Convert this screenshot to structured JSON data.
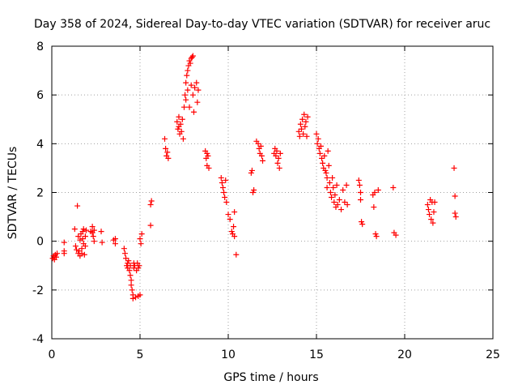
{
  "chart_data": {
    "type": "scatter",
    "title": "Day 358 of 2024, Sidereal Day-to-day VTEC variation (SDTVAR) for receiver aruc",
    "xlabel": "GPS time / hours",
    "ylabel": "SDTVAR / TECUs",
    "xlim": [
      0,
      25
    ],
    "ylim": [
      -4,
      8
    ],
    "xticks": [
      "0",
      "5",
      "10",
      "15",
      "20",
      "25"
    ],
    "yticks": [
      "-4",
      "-2",
      "0",
      "2",
      "4",
      "6",
      "8"
    ],
    "grid": true,
    "marker": "plus",
    "color": "#ff0000",
    "series": [
      {
        "name": "SDTVAR",
        "points": [
          [
            0.05,
            -0.7
          ],
          [
            0.1,
            -0.6
          ],
          [
            0.15,
            -0.75
          ],
          [
            0.2,
            -0.55
          ],
          [
            0.25,
            -0.65
          ],
          [
            0.3,
            -0.5
          ],
          [
            0.7,
            -0.05
          ],
          [
            0.7,
            -0.4
          ],
          [
            0.7,
            -0.5
          ],
          [
            1.3,
            0.5
          ],
          [
            1.35,
            -0.2
          ],
          [
            1.4,
            -0.35
          ],
          [
            1.45,
            1.45
          ],
          [
            1.5,
            -0.5
          ],
          [
            1.5,
            0.2
          ],
          [
            1.55,
            -0.4
          ],
          [
            1.6,
            -0.6
          ],
          [
            1.6,
            0.05
          ],
          [
            1.65,
            0.3
          ],
          [
            1.7,
            -0.3
          ],
          [
            1.7,
            -0.5
          ],
          [
            1.75,
            0.4
          ],
          [
            1.75,
            0.1
          ],
          [
            1.8,
            -0.1
          ],
          [
            1.8,
            0.5
          ],
          [
            1.85,
            -0.55
          ],
          [
            1.9,
            -0.2
          ],
          [
            1.9,
            0.2
          ],
          [
            1.95,
            0.45
          ],
          [
            2.2,
            0.4
          ],
          [
            2.3,
            0.6
          ],
          [
            2.3,
            0.35
          ],
          [
            2.35,
            0.2
          ],
          [
            2.4,
            0.0
          ],
          [
            2.4,
            0.45
          ],
          [
            2.8,
            0.4
          ],
          [
            2.85,
            -0.05
          ],
          [
            3.5,
            0.05
          ],
          [
            3.6,
            0.1
          ],
          [
            3.6,
            -0.1
          ],
          [
            4.1,
            -0.3
          ],
          [
            4.15,
            -0.5
          ],
          [
            4.2,
            -0.7
          ],
          [
            4.25,
            -1.0
          ],
          [
            4.3,
            -1.1
          ],
          [
            4.3,
            -0.9
          ],
          [
            4.35,
            -0.8
          ],
          [
            4.4,
            -1.2
          ],
          [
            4.45,
            -1.4
          ],
          [
            4.45,
            -1.0
          ],
          [
            4.5,
            -1.6
          ],
          [
            4.5,
            -1.8
          ],
          [
            4.55,
            -2.0
          ],
          [
            4.6,
            -2.2
          ],
          [
            4.6,
            -2.35
          ],
          [
            4.65,
            -1.1
          ],
          [
            4.65,
            -0.9
          ],
          [
            4.7,
            -1.0
          ],
          [
            4.75,
            -2.3
          ],
          [
            4.8,
            -1.2
          ],
          [
            4.85,
            -0.9
          ],
          [
            4.9,
            -1.1
          ],
          [
            4.9,
            -2.25
          ],
          [
            4.95,
            -1.0
          ],
          [
            5.0,
            -2.2
          ],
          [
            5.0,
            0.1
          ],
          [
            5.05,
            -0.1
          ],
          [
            5.1,
            0.3
          ],
          [
            5.6,
            1.5
          ],
          [
            5.65,
            1.65
          ],
          [
            5.6,
            0.65
          ],
          [
            6.4,
            4.2
          ],
          [
            6.45,
            3.8
          ],
          [
            6.5,
            3.5
          ],
          [
            6.55,
            3.65
          ],
          [
            6.6,
            3.4
          ],
          [
            7.1,
            4.9
          ],
          [
            7.15,
            4.6
          ],
          [
            7.2,
            4.7
          ],
          [
            7.2,
            5.1
          ],
          [
            7.25,
            4.4
          ],
          [
            7.3,
            4.8
          ],
          [
            7.35,
            4.5
          ],
          [
            7.4,
            5.0
          ],
          [
            7.45,
            4.2
          ],
          [
            7.5,
            5.5
          ],
          [
            7.55,
            6.0
          ],
          [
            7.6,
            6.5
          ],
          [
            7.6,
            5.8
          ],
          [
            7.65,
            6.8
          ],
          [
            7.7,
            7.0
          ],
          [
            7.7,
            6.2
          ],
          [
            7.75,
            7.2
          ],
          [
            7.8,
            7.4
          ],
          [
            7.8,
            5.5
          ],
          [
            7.85,
            7.3
          ],
          [
            7.9,
            7.5
          ],
          [
            7.9,
            6.4
          ],
          [
            7.95,
            7.55
          ],
          [
            8.0,
            7.6
          ],
          [
            8.0,
            6.0
          ],
          [
            8.05,
            5.3
          ],
          [
            8.1,
            6.3
          ],
          [
            8.2,
            6.5
          ],
          [
            8.25,
            5.7
          ],
          [
            8.3,
            6.2
          ],
          [
            8.7,
            3.7
          ],
          [
            8.75,
            3.4
          ],
          [
            8.8,
            3.1
          ],
          [
            8.8,
            3.6
          ],
          [
            8.85,
            3.5
          ],
          [
            8.9,
            3.0
          ],
          [
            9.6,
            2.6
          ],
          [
            9.65,
            2.4
          ],
          [
            9.7,
            2.2
          ],
          [
            9.75,
            2.0
          ],
          [
            9.8,
            1.8
          ],
          [
            9.85,
            2.5
          ],
          [
            9.9,
            1.6
          ],
          [
            10.0,
            1.1
          ],
          [
            10.1,
            0.9
          ],
          [
            10.2,
            0.4
          ],
          [
            10.25,
            0.3
          ],
          [
            10.3,
            0.6
          ],
          [
            10.35,
            0.2
          ],
          [
            10.35,
            1.2
          ],
          [
            10.45,
            -0.55
          ],
          [
            11.3,
            2.8
          ],
          [
            11.35,
            2.9
          ],
          [
            11.4,
            2.0
          ],
          [
            11.45,
            2.1
          ],
          [
            11.6,
            4.1
          ],
          [
            11.7,
            4.0
          ],
          [
            11.75,
            3.8
          ],
          [
            11.8,
            3.6
          ],
          [
            11.85,
            3.9
          ],
          [
            11.9,
            3.5
          ],
          [
            11.95,
            3.3
          ],
          [
            12.6,
            3.6
          ],
          [
            12.65,
            3.8
          ],
          [
            12.7,
            3.5
          ],
          [
            12.75,
            3.7
          ],
          [
            12.8,
            3.2
          ],
          [
            12.85,
            3.4
          ],
          [
            12.9,
            3.0
          ],
          [
            12.95,
            3.6
          ],
          [
            14.0,
            4.5
          ],
          [
            14.05,
            4.3
          ],
          [
            14.1,
            4.8
          ],
          [
            14.15,
            4.6
          ],
          [
            14.2,
            5.0
          ],
          [
            14.25,
            4.4
          ],
          [
            14.3,
            5.2
          ],
          [
            14.35,
            4.7
          ],
          [
            14.4,
            4.9
          ],
          [
            14.45,
            4.3
          ],
          [
            14.5,
            5.1
          ],
          [
            15.0,
            4.4
          ],
          [
            15.05,
            4.0
          ],
          [
            15.1,
            4.2
          ],
          [
            15.15,
            3.8
          ],
          [
            15.2,
            3.6
          ],
          [
            15.25,
            3.9
          ],
          [
            15.3,
            3.4
          ],
          [
            15.35,
            3.2
          ],
          [
            15.4,
            3.0
          ],
          [
            15.45,
            3.5
          ],
          [
            15.5,
            2.9
          ],
          [
            15.55,
            2.8
          ],
          [
            15.6,
            2.6
          ],
          [
            15.6,
            2.2
          ],
          [
            15.65,
            3.7
          ],
          [
            15.7,
            3.1
          ],
          [
            15.75,
            2.4
          ],
          [
            15.8,
            2.0
          ],
          [
            15.85,
            1.8
          ],
          [
            15.9,
            2.6
          ],
          [
            15.95,
            2.2
          ],
          [
            16.0,
            1.6
          ],
          [
            16.05,
            1.9
          ],
          [
            16.1,
            1.4
          ],
          [
            16.15,
            2.3
          ],
          [
            16.2,
            1.5
          ],
          [
            16.3,
            1.7
          ],
          [
            16.4,
            1.3
          ],
          [
            16.5,
            2.1
          ],
          [
            16.6,
            1.6
          ],
          [
            16.7,
            2.3
          ],
          [
            16.75,
            1.5
          ],
          [
            17.4,
            2.5
          ],
          [
            17.45,
            2.3
          ],
          [
            17.5,
            2.0
          ],
          [
            17.5,
            1.7
          ],
          [
            17.55,
            0.8
          ],
          [
            17.6,
            0.7
          ],
          [
            18.2,
            1.9
          ],
          [
            18.25,
            1.4
          ],
          [
            18.3,
            2.0
          ],
          [
            18.35,
            0.3
          ],
          [
            18.4,
            0.2
          ],
          [
            18.5,
            2.1
          ],
          [
            19.35,
            2.2
          ],
          [
            19.4,
            0.35
          ],
          [
            19.5,
            0.25
          ],
          [
            21.3,
            1.5
          ],
          [
            21.35,
            1.3
          ],
          [
            21.4,
            1.1
          ],
          [
            21.45,
            1.7
          ],
          [
            21.5,
            0.9
          ],
          [
            21.55,
            1.6
          ],
          [
            21.6,
            0.75
          ],
          [
            21.65,
            1.2
          ],
          [
            21.7,
            1.6
          ],
          [
            22.8,
            3.0
          ],
          [
            22.85,
            1.85
          ],
          [
            22.85,
            1.15
          ],
          [
            22.9,
            1.0
          ]
        ]
      }
    ]
  }
}
